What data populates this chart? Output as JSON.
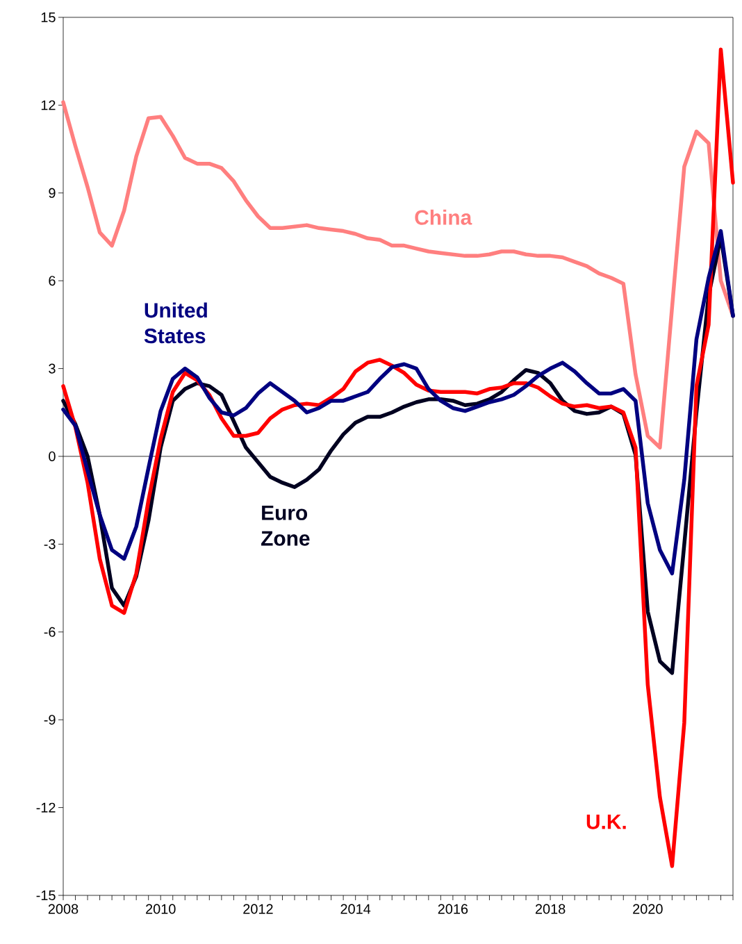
{
  "chart_data": {
    "type": "line",
    "x": [
      2008,
      2008.25,
      2008.5,
      2008.75,
      2009,
      2009.25,
      2009.5,
      2009.75,
      2010,
      2010.25,
      2010.5,
      2010.75,
      2011,
      2011.25,
      2011.5,
      2011.75,
      2012,
      2012.25,
      2012.5,
      2012.75,
      2013,
      2013.25,
      2013.5,
      2013.75,
      2014,
      2014.25,
      2014.5,
      2014.75,
      2015,
      2015.25,
      2015.5,
      2015.75,
      2016,
      2016.25,
      2016.5,
      2016.75,
      2017,
      2017.25,
      2017.5,
      2017.75,
      2018,
      2018.25,
      2018.5,
      2018.75,
      2019,
      2019.25,
      2019.5,
      2019.75,
      2020,
      2020.25,
      2020.5,
      2020.75,
      2021,
      2021.25,
      2021.5,
      2021.75
    ],
    "series": [
      {
        "name": "China",
        "color": "#ff7f7f",
        "values": [
          12.1,
          10.6,
          9.2,
          7.65,
          7.2,
          8.4,
          10.25,
          11.55,
          11.6,
          10.95,
          10.2,
          10.0,
          10.0,
          9.85,
          9.4,
          8.75,
          8.2,
          7.8,
          7.8,
          7.85,
          7.9,
          7.8,
          7.75,
          7.7,
          7.6,
          7.45,
          7.4,
          7.2,
          7.2,
          7.1,
          7.0,
          6.95,
          6.9,
          6.85,
          6.85,
          6.9,
          7.0,
          7.0,
          6.9,
          6.85,
          6.85,
          6.8,
          6.65,
          6.5,
          6.25,
          6.1,
          5.9,
          2.8,
          0.7,
          0.3,
          5.1,
          9.9,
          11.1,
          10.7,
          6.0,
          4.8
        ]
      },
      {
        "name": "Euro Zone",
        "color": "#000020",
        "values": [
          1.9,
          1.1,
          0.0,
          -2.0,
          -4.5,
          -5.1,
          -4.1,
          -2.2,
          0.3,
          1.9,
          2.3,
          2.5,
          2.4,
          2.1,
          1.2,
          0.3,
          -0.2,
          -0.7,
          -0.9,
          -1.05,
          -0.8,
          -0.45,
          0.2,
          0.75,
          1.15,
          1.35,
          1.35,
          1.5,
          1.7,
          1.85,
          1.95,
          1.95,
          1.9,
          1.75,
          1.8,
          1.95,
          2.2,
          2.6,
          2.95,
          2.85,
          2.5,
          1.9,
          1.55,
          1.45,
          1.5,
          1.7,
          1.45,
          0.05,
          -5.3,
          -7.0,
          -7.4,
          -3.0,
          1.5,
          5.5,
          7.5,
          4.8
        ]
      },
      {
        "name": "U.K.",
        "color": "#ff0000",
        "values": [
          2.4,
          1.0,
          -0.9,
          -3.5,
          -5.1,
          -5.35,
          -4.0,
          -1.5,
          0.6,
          2.2,
          2.85,
          2.6,
          2.1,
          1.3,
          0.7,
          0.7,
          0.8,
          1.3,
          1.6,
          1.75,
          1.8,
          1.75,
          2.0,
          2.3,
          2.9,
          3.2,
          3.3,
          3.1,
          2.85,
          2.45,
          2.25,
          2.2,
          2.2,
          2.2,
          2.15,
          2.3,
          2.35,
          2.5,
          2.5,
          2.35,
          2.05,
          1.8,
          1.7,
          1.75,
          1.65,
          1.7,
          1.5,
          0.3,
          -7.8,
          -11.65,
          -14.0,
          -9.1,
          2.4,
          4.5,
          13.9,
          9.35
        ]
      },
      {
        "name": "United States",
        "color": "#000080",
        "values": [
          1.6,
          1.05,
          -0.5,
          -2.0,
          -3.2,
          -3.5,
          -2.4,
          -0.4,
          1.55,
          2.65,
          3.0,
          2.7,
          2.0,
          1.5,
          1.4,
          1.65,
          2.15,
          2.5,
          2.2,
          1.9,
          1.5,
          1.65,
          1.9,
          1.9,
          2.05,
          2.2,
          2.65,
          3.05,
          3.15,
          3.0,
          2.3,
          1.9,
          1.65,
          1.55,
          1.7,
          1.85,
          1.95,
          2.1,
          2.4,
          2.75,
          3.0,
          3.2,
          2.9,
          2.5,
          2.15,
          2.15,
          2.3,
          1.9,
          -1.6,
          -3.2,
          -4.0,
          -0.8,
          4.0,
          6.1,
          7.7,
          4.8
        ]
      }
    ],
    "xlim": [
      2008,
      2021.75
    ],
    "ylim": [
      -15,
      15
    ],
    "xticks": [
      2008,
      {
        "value": 2008.25,
        "label": null
      },
      {
        "value": 2008.5,
        "label": null
      },
      {
        "value": 2008.75,
        "label": null
      },
      {
        "value": 2009,
        "label": null
      },
      {
        "value": 2009.25,
        "label": null
      },
      {
        "value": 2009.5,
        "label": null
      },
      {
        "value": 2009.75,
        "label": null
      },
      2010,
      {
        "value": 2010.25,
        "label": null
      },
      {
        "value": 2010.5,
        "label": null
      },
      {
        "value": 2010.75,
        "label": null
      },
      {
        "value": 2011,
        "label": null
      },
      {
        "value": 2011.25,
        "label": null
      },
      {
        "value": 2011.5,
        "label": null
      },
      {
        "value": 2011.75,
        "label": null
      },
      2012,
      {
        "value": 2012.25,
        "label": null
      },
      {
        "value": 2012.5,
        "label": null
      },
      {
        "value": 2012.75,
        "label": null
      },
      {
        "value": 2013,
        "label": null
      },
      {
        "value": 2013.25,
        "label": null
      },
      {
        "value": 2013.5,
        "label": null
      },
      {
        "value": 2013.75,
        "label": null
      },
      2014,
      {
        "value": 2014.25,
        "label": null
      },
      {
        "value": 2014.5,
        "label": null
      },
      {
        "value": 2014.75,
        "label": null
      },
      {
        "value": 2015,
        "label": null
      },
      {
        "value": 2015.25,
        "label": null
      },
      {
        "value": 2015.5,
        "label": null
      },
      {
        "value": 2015.75,
        "label": null
      },
      2016,
      {
        "value": 2016.25,
        "label": null
      },
      {
        "value": 2016.5,
        "label": null
      },
      {
        "value": 2016.75,
        "label": null
      },
      {
        "value": 2017,
        "label": null
      },
      {
        "value": 2017.25,
        "label": null
      },
      {
        "value": 2017.5,
        "label": null
      },
      {
        "value": 2017.75,
        "label": null
      },
      2018,
      {
        "value": 2018.25,
        "label": null
      },
      {
        "value": 2018.5,
        "label": null
      },
      {
        "value": 2018.75,
        "label": null
      },
      {
        "value": 2019,
        "label": null
      },
      {
        "value": 2019.25,
        "label": null
      },
      {
        "value": 2019.5,
        "label": null
      },
      {
        "value": 2019.75,
        "label": null
      },
      2020,
      {
        "value": 2020.25,
        "label": null
      },
      {
        "value": 2020.5,
        "label": null
      },
      {
        "value": 2020.75,
        "label": null
      },
      {
        "value": 2021,
        "label": null
      },
      {
        "value": 2021.25,
        "label": null
      },
      {
        "value": 2021.5,
        "label": null
      },
      {
        "value": 2021.75,
        "label": null
      }
    ],
    "yticks": [
      -15,
      -12,
      -9,
      -6,
      -3,
      0,
      3,
      6,
      9,
      12,
      15
    ],
    "ref_lines": [
      {
        "axis": "y",
        "value": 0,
        "color": "#000000"
      }
    ]
  }
}
